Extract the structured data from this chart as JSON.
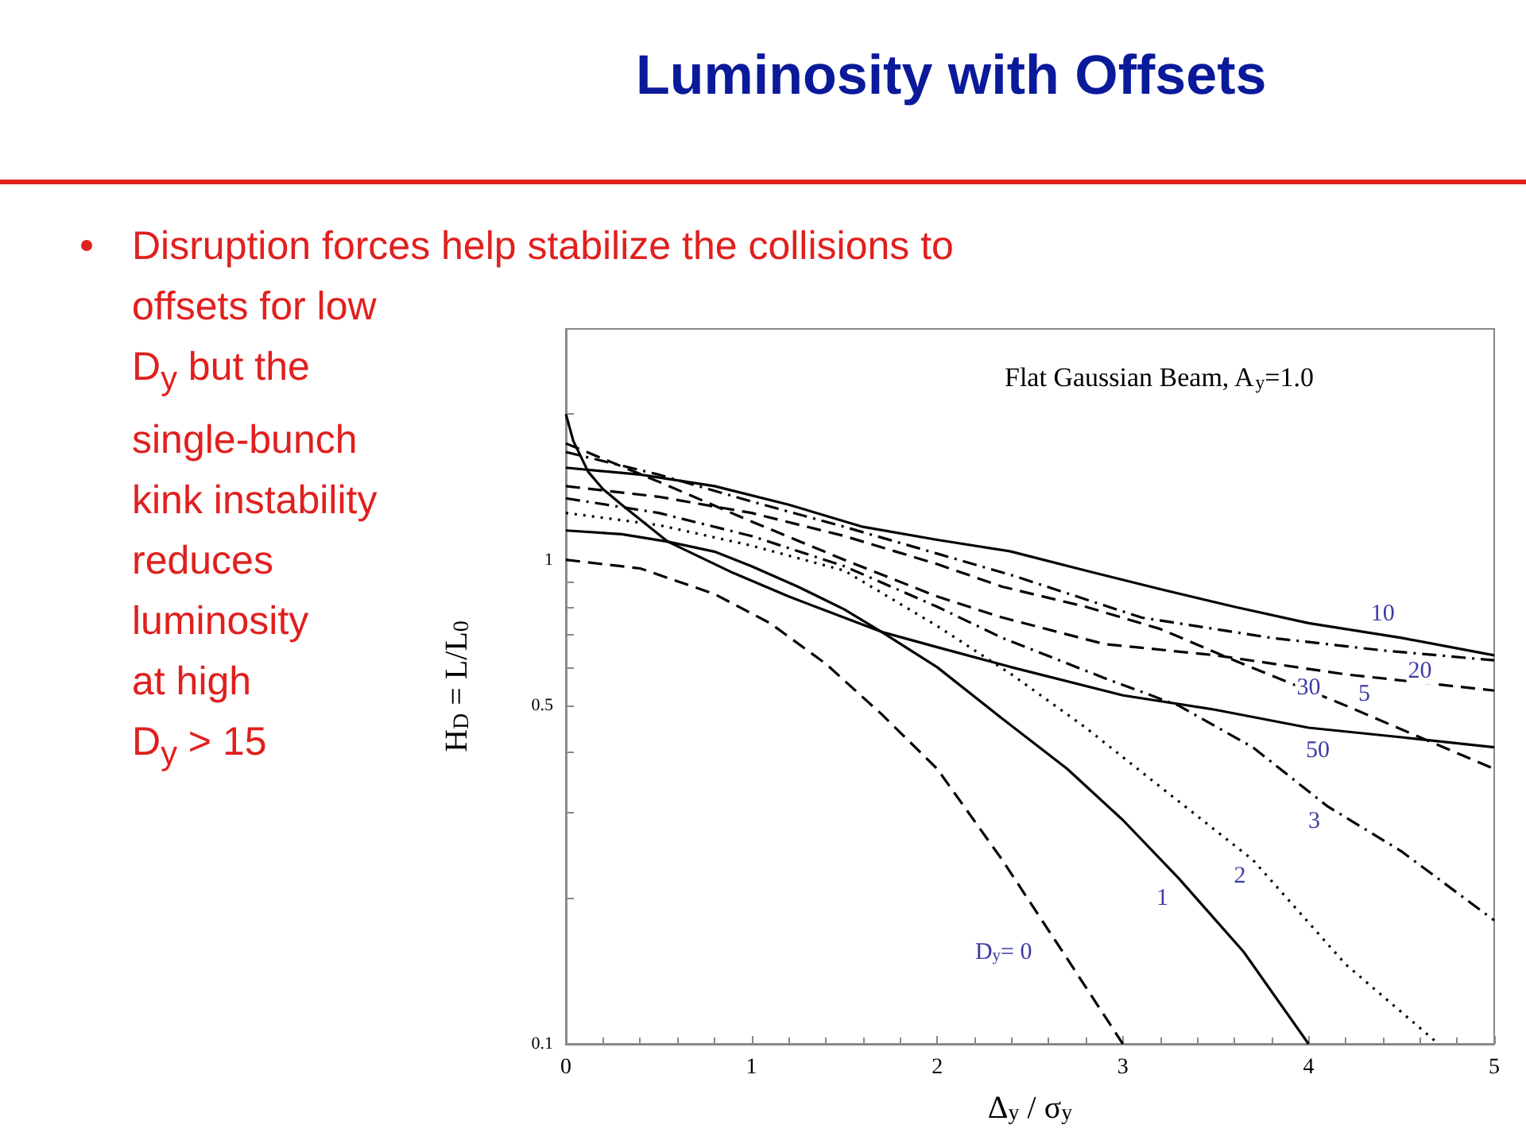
{
  "chart_data": {
    "type": "line",
    "title": "Luminosity with Offsets",
    "subtitle": "Flat Gaussian Beam, A$_{y}$=1.0",
    "xlabel": "Δ$_{y}$ / σ$_{y}$",
    "ylabel": "H$_{D}$ = L/L$_{0}$",
    "log": "y",
    "grid": false,
    "legend": false,
    "marker": "none",
    "xlim": [
      0,
      5
    ],
    "xticks": [
      0,
      1,
      2,
      3,
      4,
      5
    ],
    "ylim": [
      0.1,
      3
    ],
    "yticks": [
      0.1,
      {
        "value": 0.2,
        "label": null
      },
      {
        "value": 0.3,
        "label": null
      },
      {
        "value": 0.4,
        "label": null
      },
      0.5,
      {
        "value": 0.6,
        "label": null
      },
      {
        "value": 0.7,
        "label": null
      },
      {
        "value": 0.8,
        "label": null
      },
      {
        "value": 0.9,
        "label": null
      },
      1,
      {
        "value": 2,
        "label": null
      }
    ],
    "series": [
      {
        "name": "D$_{y}$= 0",
        "color": "#000000",
        "line_style": "dashed",
        "x": [
          0,
          0.4,
          0.8,
          1.1,
          1.4,
          1.7,
          2.0,
          2.35,
          2.7,
          3.0
        ],
        "values": [
          1.0,
          0.96,
          0.85,
          0.74,
          0.61,
          0.48,
          0.37,
          0.24,
          0.15,
          0.1
        ]
      },
      {
        "name": "1",
        "color": "#000000",
        "line_style": "solid",
        "x": [
          0,
          0.3,
          0.55,
          0.8,
          1.0,
          1.25,
          1.5,
          1.7,
          2.0,
          2.35,
          2.7,
          3.0,
          3.3,
          3.65,
          4.0
        ],
        "values": [
          1.15,
          1.13,
          1.09,
          1.04,
          0.97,
          0.88,
          0.79,
          0.71,
          0.6,
          0.47,
          0.37,
          0.29,
          0.22,
          0.155,
          0.1
        ]
      },
      {
        "name": "2",
        "color": "#000000",
        "line_style": "dotted",
        "x": [
          0,
          0.5,
          1.0,
          1.5,
          2.0,
          2.4,
          2.8,
          3.2,
          3.7,
          4.2,
          4.7
        ],
        "values": [
          1.25,
          1.18,
          1.07,
          0.95,
          0.73,
          0.58,
          0.45,
          0.34,
          0.24,
          0.146,
          0.1
        ]
      },
      {
        "name": "3",
        "color": "#000000",
        "line_style": "dashdot",
        "x": [
          0,
          0.5,
          1.0,
          1.5,
          2.0,
          2.35,
          2.9,
          3.3,
          3.7,
          4.1,
          4.5,
          5.0
        ],
        "values": [
          1.34,
          1.25,
          1.12,
          0.97,
          0.8,
          0.69,
          0.57,
          0.5,
          0.41,
          0.31,
          0.25,
          0.18
        ]
      },
      {
        "name": "5",
        "color": "#000000",
        "line_style": "dashed",
        "x": [
          0,
          0.5,
          1.0,
          1.5,
          2.0,
          2.35,
          2.8,
          3.2,
          3.6,
          4.2,
          4.6,
          5.0
        ],
        "values": [
          1.42,
          1.35,
          1.25,
          1.12,
          0.98,
          0.88,
          0.8,
          0.72,
          0.62,
          0.5,
          0.43,
          0.37
        ]
      },
      {
        "name": "10",
        "color": "#000000",
        "line_style": "solid",
        "x": [
          0,
          0.4,
          0.8,
          1.2,
          1.6,
          2.0,
          2.4,
          2.8,
          3.2,
          3.6,
          4.0,
          4.5,
          5.0
        ],
        "values": [
          1.55,
          1.5,
          1.42,
          1.3,
          1.17,
          1.1,
          1.04,
          0.95,
          0.87,
          0.8,
          0.74,
          0.69,
          0.635
        ]
      },
      {
        "name": "20",
        "color": "#000000",
        "line_style": "dashdot",
        "x": [
          0,
          0.5,
          1.0,
          1.5,
          2.0,
          2.4,
          3.1,
          3.8,
          4.4,
          5.0
        ],
        "values": [
          1.67,
          1.5,
          1.32,
          1.17,
          1.03,
          0.93,
          0.76,
          0.69,
          0.65,
          0.62
        ]
      },
      {
        "name": "30",
        "color": "#000000",
        "line_style": "dashed",
        "x": [
          0,
          0.5,
          1.0,
          1.5,
          2.0,
          2.35,
          2.9,
          3.5,
          4.2,
          5.0
        ],
        "values": [
          1.74,
          1.45,
          1.2,
          1.0,
          0.84,
          0.76,
          0.67,
          0.635,
          0.58,
          0.537
        ]
      },
      {
        "name": "50",
        "color": "#000000",
        "line_style": "solid",
        "x": [
          0,
          0.04,
          0.12,
          0.2,
          0.3,
          0.55,
          0.9,
          1.2,
          1.7,
          2.0,
          2.4,
          3.0,
          3.5,
          4.0,
          4.5,
          5.0
        ],
        "values": [
          2.0,
          1.76,
          1.52,
          1.4,
          1.3,
          1.09,
          0.94,
          0.84,
          0.71,
          0.66,
          0.6,
          0.525,
          0.49,
          0.45,
          0.43,
          0.41
        ]
      }
    ],
    "annotations": [
      "Disruption forces help stabilize the collisions to\noffsets for low\nD$_{y}$ but the\nsingle-bunch\nkink instability\nreduces\nluminosity\nat high\nD$_{y}$ > 15"
    ]
  }
}
